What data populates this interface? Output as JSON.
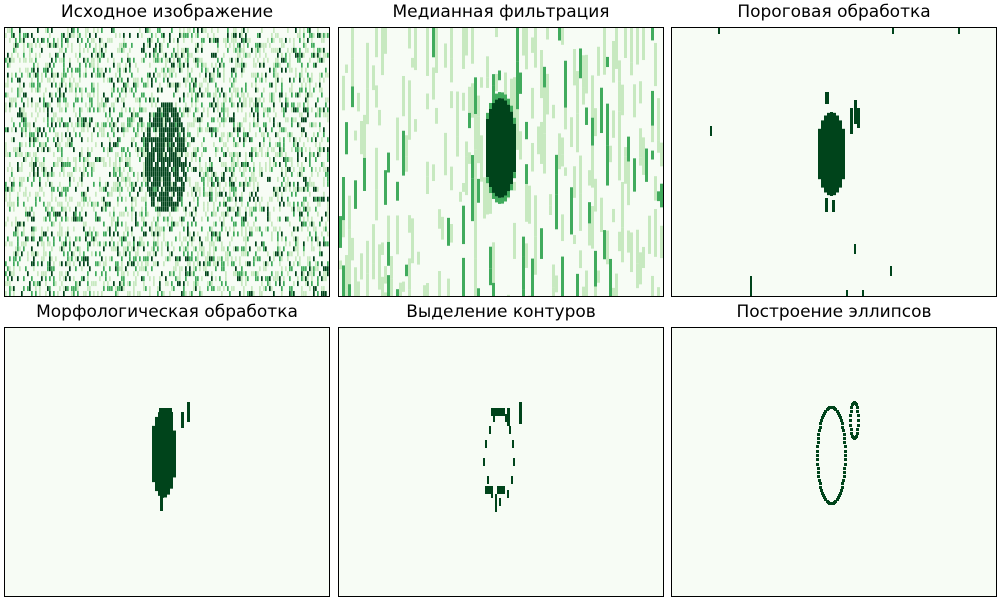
{
  "palette": {
    "background": "#f7fcf5",
    "light": "#c7e9c0",
    "medium": "#41ab5d",
    "dark": "#00441b"
  },
  "panels": [
    {
      "title": "Исходное изображение",
      "kind": "raw_noise"
    },
    {
      "title": "Медианная фильтрация",
      "kind": "median_filtered"
    },
    {
      "title": "Пороговая обработка",
      "kind": "threshold"
    },
    {
      "title": "Морфологическая обработка",
      "kind": "morphology"
    },
    {
      "title": "Выделение контуров",
      "kind": "contours"
    },
    {
      "title": "Построение эллипсов",
      "kind": "ellipses"
    }
  ],
  "chart_data": [
    {
      "type": "heatmap",
      "title": "Исходное изображение",
      "colormap": "Greens",
      "axes": "hidden",
      "grid": false
    },
    {
      "type": "heatmap",
      "title": "Медианная фильтрация",
      "colormap": "Greens",
      "axes": "hidden",
      "grid": false
    },
    {
      "type": "heatmap",
      "title": "Пороговая обработка",
      "colormap": "Greens",
      "axes": "hidden",
      "grid": false
    },
    {
      "type": "heatmap",
      "title": "Морфологическая обработка",
      "colormap": "Greens",
      "axes": "hidden",
      "grid": false
    },
    {
      "type": "heatmap",
      "title": "Выделение контуров",
      "colormap": "Greens",
      "axes": "hidden",
      "grid": false
    },
    {
      "type": "heatmap",
      "title": "Построение эллипсов",
      "colormap": "Greens",
      "axes": "hidden",
      "grid": false
    }
  ]
}
